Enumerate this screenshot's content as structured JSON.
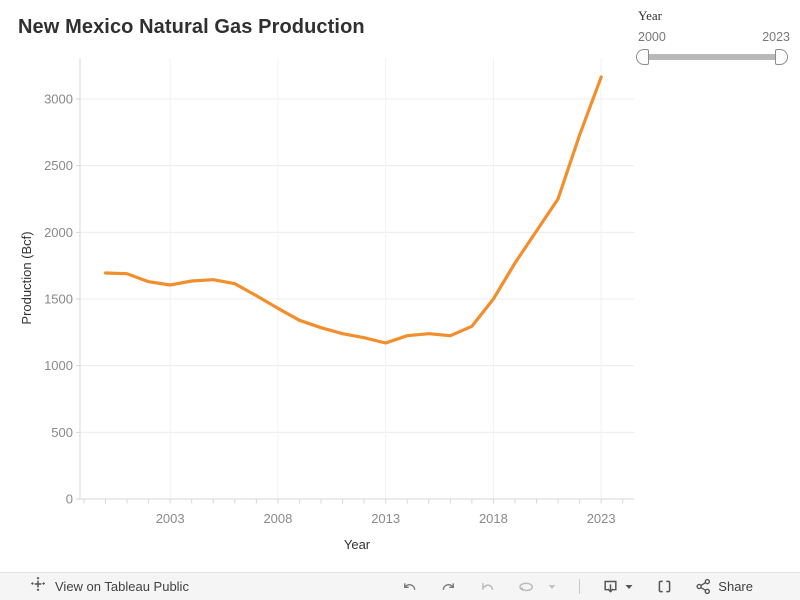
{
  "header": {
    "title": "New Mexico Natural Gas Production"
  },
  "chart_data": {
    "type": "line",
    "title": "New Mexico Natural Gas Production",
    "xlabel": "Year",
    "ylabel": "Production (Bcf)",
    "x": [
      2000,
      2001,
      2002,
      2003,
      2004,
      2005,
      2006,
      2007,
      2008,
      2009,
      2010,
      2011,
      2012,
      2013,
      2014,
      2015,
      2016,
      2017,
      2018,
      2019,
      2020,
      2021,
      2022,
      2023
    ],
    "values": [
      1695,
      1690,
      1630,
      1605,
      1635,
      1645,
      1615,
      1525,
      1430,
      1340,
      1285,
      1240,
      1210,
      1170,
      1225,
      1240,
      1225,
      1295,
      1500,
      1770,
      2010,
      2250,
      2730,
      3165
    ],
    "series_name": "Production (Bcf)",
    "xticks": [
      2003,
      2008,
      2013,
      2018,
      2023
    ],
    "yticks": [
      0,
      500,
      1000,
      1500,
      2000,
      2500,
      3000
    ],
    "xlim": [
      1998.8,
      2024.5
    ],
    "ylim": [
      0,
      3300
    ],
    "grid": true,
    "legend": "none",
    "line_color": "#f28e2b"
  },
  "filter": {
    "label": "Year",
    "min": "2000",
    "max": "2023"
  },
  "toolbar": {
    "view_label": "View on Tableau Public",
    "share_label": "Share",
    "icons": [
      "tableau-logo-icon",
      "undo-icon",
      "redo-icon",
      "reset-icon",
      "refresh-icon",
      "caret-down-icon",
      "download-icon",
      "fullscreen-icon",
      "share-icon"
    ]
  },
  "colors": {
    "line": "#f28e2b",
    "grid": "#ececec",
    "axis": "#d7d7d7",
    "tick_label": "#8a8a8a",
    "axis_title": "#333333",
    "toolbar_bg": "#f5f5f5"
  }
}
